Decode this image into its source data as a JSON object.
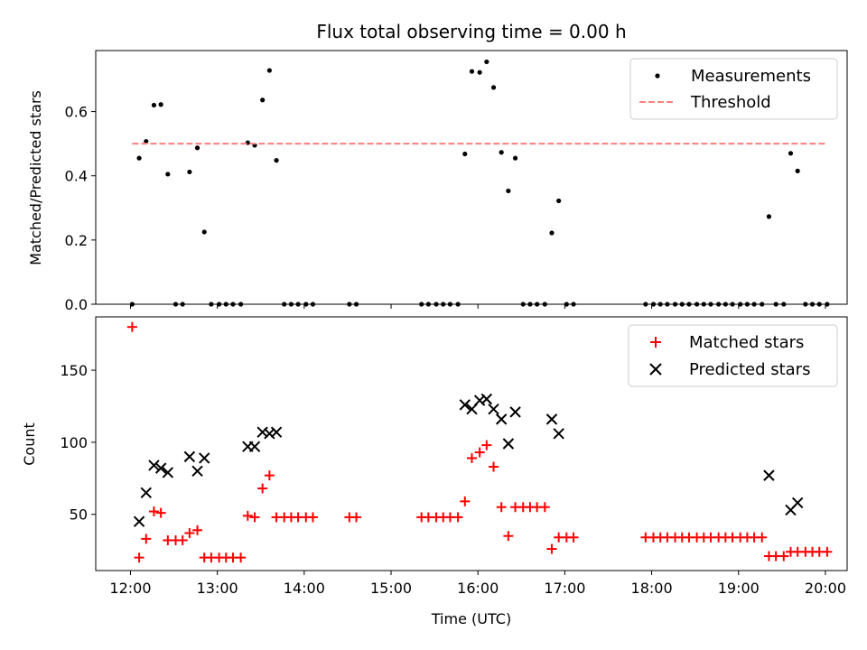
{
  "chart_data": [
    {
      "type": "scatter",
      "title": "Flux total observing time = 0.00 h",
      "xlabel": "",
      "ylabel": "Matched/Predicted stars",
      "xlim": [
        11.6,
        20.25
      ],
      "ylim": [
        0,
        0.79
      ],
      "yticks": [
        0.0,
        0.2,
        0.4,
        0.6
      ],
      "ytick_labels": [
        "0.0",
        "0.2",
        "0.4",
        "0.6"
      ],
      "xticks": [
        12,
        13,
        14,
        15,
        16,
        17,
        18,
        19,
        20
      ],
      "legend_position": "top-right",
      "series": [
        {
          "name": "Measurements",
          "marker": "dot",
          "color": "#000000",
          "x": [
            12.02,
            12.1,
            12.18,
            12.27,
            12.35,
            12.43,
            12.52,
            12.6,
            12.68,
            12.77,
            12.85,
            12.93,
            13.02,
            13.1,
            13.18,
            13.27,
            13.35,
            13.43,
            13.52,
            13.6,
            13.68,
            13.77,
            13.85,
            13.93,
            14.02,
            14.1,
            14.52,
            14.6,
            15.35,
            15.43,
            15.52,
            15.6,
            15.68,
            15.77,
            15.85,
            15.93,
            16.02,
            16.1,
            16.18,
            16.27,
            16.35,
            16.43,
            16.52,
            16.6,
            16.68,
            16.77,
            16.85,
            16.93,
            17.02,
            17.1,
            17.93,
            18.02,
            18.1,
            18.18,
            18.27,
            18.35,
            18.43,
            18.52,
            18.6,
            18.68,
            18.77,
            18.85,
            18.93,
            19.02,
            19.1,
            19.18,
            19.27,
            19.35,
            19.43,
            19.52,
            19.6,
            19.68,
            19.77,
            19.85,
            19.93,
            20.02
          ],
          "y": [
            0,
            0.455,
            0.507,
            0.62,
            0.622,
            0.405,
            0,
            0,
            0.412,
            0.487,
            0.225,
            0,
            0,
            0,
            0,
            0,
            0.503,
            0.495,
            0.636,
            0.728,
            0.448,
            0,
            0,
            0,
            0,
            0,
            0,
            0,
            0,
            0,
            0,
            0,
            0,
            0,
            0.468,
            0.725,
            0.722,
            0.755,
            0.675,
            0.473,
            0.353,
            0.455,
            0,
            0,
            0,
            0,
            0.222,
            0.322,
            0,
            0,
            0,
            0,
            0,
            0,
            0,
            0,
            0,
            0,
            0,
            0,
            0,
            0,
            0,
            0,
            0,
            0,
            0,
            0.273,
            0,
            0,
            0.47,
            0.415,
            0,
            0,
            0,
            0
          ]
        },
        {
          "name": "Threshold",
          "style": "dashed",
          "color": "#ff7f7f",
          "x": [
            12.02,
            20.02
          ],
          "y": [
            0.5,
            0.5
          ]
        }
      ]
    },
    {
      "type": "scatter",
      "title": "",
      "xlabel": "Time (UTC)",
      "ylabel": "Count",
      "xlim": [
        11.6,
        20.25
      ],
      "ylim": [
        11,
        187
      ],
      "yticks": [
        50,
        100,
        150
      ],
      "ytick_labels": [
        "50",
        "100",
        "150"
      ],
      "xticks": [
        12,
        13,
        14,
        15,
        16,
        17,
        18,
        19,
        20
      ],
      "xtick_labels": [
        "12:00",
        "13:00",
        "14:00",
        "15:00",
        "16:00",
        "17:00",
        "18:00",
        "19:00",
        "20:00"
      ],
      "legend_position": "top-right",
      "series": [
        {
          "name": "Matched stars",
          "marker": "plus",
          "color": "#ff0000",
          "x": [
            12.02,
            12.1,
            12.18,
            12.27,
            12.35,
            12.43,
            12.52,
            12.6,
            12.68,
            12.77,
            12.85,
            12.93,
            13.02,
            13.1,
            13.18,
            13.27,
            13.35,
            13.43,
            13.52,
            13.6,
            13.68,
            13.77,
            13.85,
            13.93,
            14.02,
            14.1,
            14.52,
            14.6,
            15.35,
            15.43,
            15.52,
            15.6,
            15.68,
            15.77,
            15.85,
            15.93,
            16.02,
            16.1,
            16.18,
            16.27,
            16.35,
            16.43,
            16.52,
            16.6,
            16.68,
            16.77,
            16.85,
            16.93,
            17.02,
            17.1,
            17.93,
            18.02,
            18.1,
            18.18,
            18.27,
            18.35,
            18.43,
            18.52,
            18.6,
            18.68,
            18.77,
            18.85,
            18.93,
            19.02,
            19.1,
            19.18,
            19.27,
            19.35,
            19.43,
            19.52,
            19.6,
            19.68,
            19.77,
            19.85,
            19.93,
            20.02
          ],
          "y": [
            180,
            20,
            33,
            52,
            51,
            32,
            32,
            32,
            37,
            39,
            20,
            20,
            20,
            20,
            20,
            20,
            49,
            48,
            68,
            77,
            48,
            48,
            48,
            48,
            48,
            48,
            48,
            48,
            48,
            48,
            48,
            48,
            48,
            48,
            59,
            89,
            93,
            98,
            83,
            55,
            35,
            55,
            55,
            55,
            55,
            55,
            26,
            34,
            34,
            34,
            34,
            34,
            34,
            34,
            34,
            34,
            34,
            34,
            34,
            34,
            34,
            34,
            34,
            34,
            34,
            34,
            34,
            21,
            21,
            21,
            24,
            24,
            24,
            24,
            24,
            24
          ]
        },
        {
          "name": "Predicted stars",
          "marker": "x",
          "color": "#000000",
          "x": [
            12.1,
            12.18,
            12.27,
            12.35,
            12.43,
            12.68,
            12.77,
            12.85,
            13.35,
            13.43,
            13.52,
            13.6,
            13.68,
            15.85,
            15.93,
            16.02,
            16.1,
            16.18,
            16.27,
            16.35,
            16.43,
            16.85,
            16.93,
            19.35,
            19.6,
            19.68
          ],
          "y": [
            45,
            65,
            84,
            82,
            79,
            90,
            80,
            89,
            97,
            97,
            107,
            106,
            107,
            126,
            123,
            129,
            130,
            123,
            116,
            99,
            121,
            116,
            106,
            77,
            53,
            58
          ]
        }
      ]
    }
  ]
}
